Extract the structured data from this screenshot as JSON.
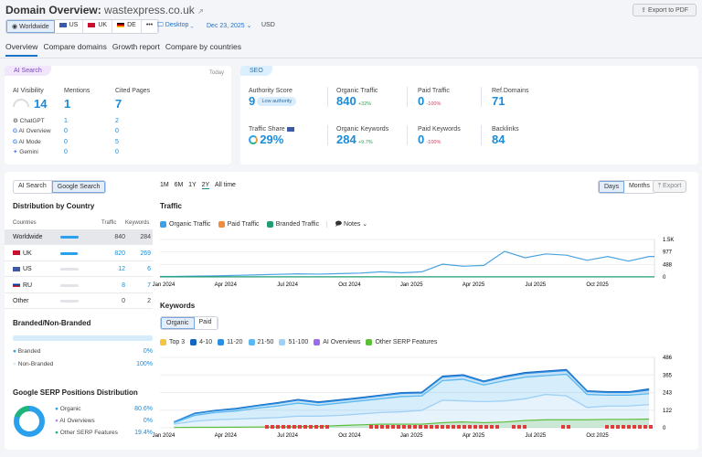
{
  "header": {
    "title": "Domain Overview:",
    "domain": "wastexpress.co.uk",
    "export_pdf": "Export to PDF",
    "regions": [
      "Worldwide",
      "US",
      "UK",
      "DE",
      "•••"
    ],
    "device": "Desktop",
    "date": "Dec 23, 2025",
    "currency": "USD"
  },
  "tabs": [
    "Overview",
    "Compare domains",
    "Growth report",
    "Compare by countries"
  ],
  "ai_search": {
    "tag": "AI Search",
    "today": "Today",
    "metrics": [
      {
        "label": "AI Visibility",
        "value": "14"
      },
      {
        "label": "Mentions",
        "value": "1"
      },
      {
        "label": "Cited Pages",
        "value": "7"
      }
    ],
    "rows": [
      {
        "name": "ChatGPT",
        "mentions": "1",
        "cited": "2"
      },
      {
        "name": "AI Overview",
        "mentions": "0",
        "cited": "0"
      },
      {
        "name": "AI Mode",
        "mentions": "0",
        "cited": "5"
      },
      {
        "name": "Gemini",
        "mentions": "0",
        "cited": "0"
      }
    ]
  },
  "seo": {
    "tag": "SEO",
    "authority": {
      "label": "Authority Score",
      "value": "9",
      "badge": "Low authority"
    },
    "organic_traffic": {
      "label": "Organic Traffic",
      "value": "840",
      "change": "+32%"
    },
    "paid_traffic": {
      "label": "Paid Traffic",
      "value": "0",
      "change": "-100%"
    },
    "ref_domains": {
      "label": "Ref.Domains",
      "value": "71"
    },
    "traffic_share": {
      "label": "Traffic Share",
      "value": "29%"
    },
    "organic_keywords": {
      "label": "Organic Keywords",
      "value": "284",
      "change": "+9.7%"
    },
    "paid_keywords": {
      "label": "Paid Keywords",
      "value": "0",
      "change": "-100%"
    },
    "backlinks": {
      "label": "Backlinks",
      "value": "84"
    }
  },
  "left": {
    "toggle": [
      "AI Search",
      "Google Search"
    ],
    "dist_title": "Distribution by Country",
    "cols": [
      "Countries",
      "Traffic",
      "Keywords"
    ],
    "countries": [
      {
        "name": "Worldwide",
        "traffic": "840",
        "keywords": "284",
        "share": 1
      },
      {
        "name": "UK",
        "traffic": "820",
        "keywords": "269",
        "share": 0.97
      },
      {
        "name": "US",
        "traffic": "12",
        "keywords": "6",
        "share": 0.02
      },
      {
        "name": "RU",
        "traffic": "8",
        "keywords": "7",
        "share": 0.01
      },
      {
        "name": "Other",
        "traffic": "0",
        "keywords": "2",
        "share": 0
      }
    ],
    "branded_title": "Branded/Non-Branded",
    "branded": [
      {
        "label": "Branded",
        "value": "0%"
      },
      {
        "label": "Non-Branded",
        "value": "100%"
      }
    ],
    "serp_title": "Google SERP Positions Distribution",
    "serp": [
      {
        "label": "Organic",
        "value": "80.6%",
        "color": "#2ba1ee"
      },
      {
        "label": "AI Overviews",
        "value": "0%",
        "color": "#b48cf0"
      },
      {
        "label": "Other SERP Features",
        "value": "19.4%",
        "color": "#1fb57a"
      }
    ]
  },
  "controls": {
    "ranges": [
      "1M",
      "6M",
      "1Y",
      "2Y",
      "All time"
    ],
    "active_range": "2Y",
    "days": "Days",
    "months": "Months",
    "export": "Export"
  },
  "chart_data": [
    {
      "type": "line",
      "title": "Traffic",
      "legend": [
        "Organic Traffic",
        "Paid Traffic",
        "Branded Traffic"
      ],
      "notes": "Notes",
      "x": [
        "2024-01",
        "2024-02",
        "2024-03",
        "2024-04",
        "2024-05",
        "2024-06",
        "2024-07",
        "2024-08",
        "2024-09",
        "2024-10",
        "2024-11",
        "2024-12",
        "2025-01",
        "2025-02",
        "2025-03",
        "2025-04",
        "2025-05",
        "2025-06",
        "2025-07",
        "2025-08",
        "2025-09",
        "2025-10",
        "2025-11",
        "2025-12"
      ],
      "xticks": [
        "Jan 2024",
        "Apr 2024",
        "Jul 2024",
        "Oct 2024",
        "Jan 2025",
        "Apr 2025",
        "Jul 2025",
        "Oct 2025"
      ],
      "yticks": [
        "0",
        "488",
        "977",
        "1.5K"
      ],
      "ylim": [
        0,
        1465
      ],
      "series": [
        {
          "name": "Organic Traffic",
          "color": "#4aa3e0",
          "values": [
            20,
            30,
            40,
            60,
            80,
            100,
            120,
            110,
            130,
            150,
            200,
            160,
            200,
            500,
            420,
            450,
            1000,
            750,
            900,
            850,
            650,
            800,
            620,
            800
          ]
        },
        {
          "name": "Branded Traffic",
          "color": "#1e9e72",
          "values": [
            5,
            5,
            5,
            5,
            5,
            5,
            5,
            5,
            5,
            5,
            5,
            5,
            5,
            5,
            5,
            5,
            5,
            5,
            5,
            5,
            5,
            5,
            5,
            5
          ]
        }
      ]
    },
    {
      "type": "area",
      "title": "Keywords",
      "toggle": [
        "Organic",
        "Paid"
      ],
      "legend": [
        "Top 3",
        "4-10",
        "11-20",
        "21-50",
        "51-100",
        "AI Overviews",
        "Other SERP Features"
      ],
      "x": [
        "2024-01",
        "2024-02",
        "2024-03",
        "2024-04",
        "2024-05",
        "2024-06",
        "2024-07",
        "2024-08",
        "2024-09",
        "2024-10",
        "2024-11",
        "2024-12",
        "2025-01",
        "2025-02",
        "2025-03",
        "2025-04",
        "2025-05",
        "2025-06",
        "2025-07",
        "2025-08",
        "2025-09",
        "2025-10",
        "2025-11",
        "2025-12"
      ],
      "xticks": [
        "Jan 2024",
        "Apr 2024",
        "Jul 2024",
        "Oct 2024",
        "Jan 2025",
        "Apr 2025",
        "Jul 2025",
        "Oct 2025"
      ],
      "yticks": [
        "0",
        "122",
        "243",
        "365",
        "486"
      ],
      "ylim": [
        0,
        486
      ],
      "series": [
        {
          "name": "51-100",
          "color": "#9fd0f5",
          "values": [
            25,
            45,
            55,
            60,
            65,
            70,
            80,
            80,
            85,
            95,
            105,
            110,
            120,
            190,
            185,
            180,
            185,
            200,
            230,
            220,
            140,
            150,
            150,
            160
          ]
        },
        {
          "name": "21-50",
          "color": "#5bb8f0",
          "values": [
            10,
            40,
            50,
            55,
            70,
            80,
            90,
            75,
            85,
            90,
            95,
            105,
            100,
            135,
            150,
            115,
            140,
            150,
            130,
            150,
            90,
            75,
            75,
            75
          ]
        },
        {
          "name": "11-20",
          "color": "#2a8fe0",
          "values": [
            5,
            12,
            12,
            14,
            15,
            18,
            20,
            18,
            18,
            18,
            20,
            22,
            20,
            25,
            25,
            22,
            25,
            25,
            25,
            25,
            20,
            18,
            18,
            25
          ]
        },
        {
          "name": "4-10",
          "color": "#1565c0",
          "values": [
            0,
            3,
            3,
            4,
            4,
            5,
            5,
            5,
            5,
            5,
            5,
            5,
            5,
            6,
            6,
            5,
            6,
            6,
            6,
            6,
            5,
            5,
            5,
            8
          ]
        },
        {
          "name": "Other SERP Features",
          "color": "#5cbf3a",
          "values": [
            2,
            3,
            3,
            4,
            5,
            6,
            8,
            10,
            15,
            20,
            25,
            25,
            25,
            35,
            40,
            35,
            40,
            50,
            55,
            55,
            55,
            58,
            58,
            60
          ]
        }
      ]
    }
  ]
}
